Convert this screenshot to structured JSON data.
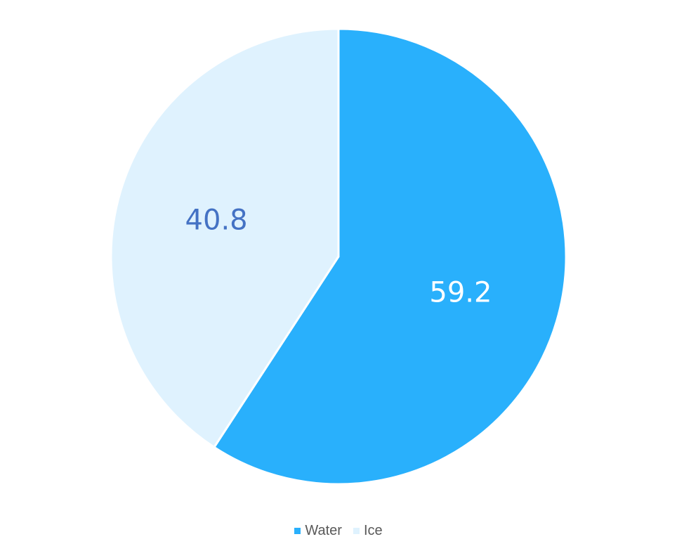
{
  "chart_data": {
    "type": "pie",
    "title": "",
    "categories": [
      "Water",
      "Ice"
    ],
    "values": [
      59.2,
      40.8
    ],
    "colors": [
      "#29b0fc",
      "#dff2fe"
    ],
    "label_colors": [
      "#ffffff",
      "#4472c4"
    ],
    "start_angle_deg": 0,
    "direction": "clockwise",
    "legend_position": "bottom"
  },
  "legend": {
    "items": [
      {
        "label": "Water",
        "color": "#29b0fc"
      },
      {
        "label": "Ice",
        "color": "#dff2fe"
      }
    ]
  }
}
